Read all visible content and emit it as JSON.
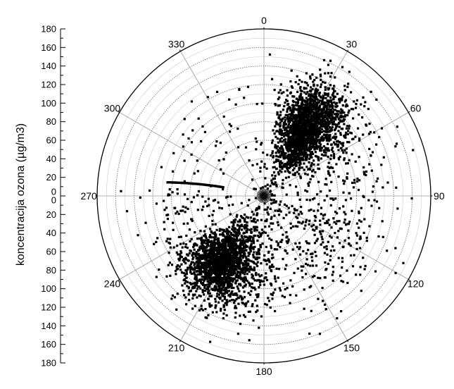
{
  "chart_data": {
    "type": "scatter",
    "coordinate_system": "polar",
    "title": "",
    "radial_axis": {
      "label": "koncentracija ozona (µg/m3)",
      "range": [
        0,
        180
      ],
      "ticks": [
        0,
        20,
        40,
        60,
        80,
        100,
        120,
        140,
        160,
        180
      ],
      "direction": "clockwise",
      "zero_at": "top"
    },
    "angular_axis": {
      "ticks": [
        0,
        30,
        60,
        90,
        120,
        150,
        180,
        210,
        240,
        270,
        300,
        330
      ]
    },
    "grid": true,
    "marker": "square",
    "marker_color": "#000000",
    "series": [
      {
        "clusters": [
          {
            "angle_center": 32,
            "angle_spread": 9,
            "r_mean": 88,
            "r_sd": 24,
            "count": 1900
          },
          {
            "angle_center": 213,
            "angle_spread": 11,
            "r_mean": 88,
            "r_sd": 22,
            "count": 1700
          },
          {
            "angle_center": 125,
            "angle_spread": 30,
            "r_mean": 80,
            "r_sd": 35,
            "count": 380
          },
          {
            "angle_center": 195,
            "angle_spread": 16,
            "r_mean": 75,
            "r_sd": 30,
            "count": 300
          },
          {
            "angle_center": 55,
            "angle_spread": 12,
            "r_mean": 90,
            "r_sd": 30,
            "count": 230
          },
          {
            "angle_center": 260,
            "angle_spread": 12,
            "r_mean": 85,
            "r_sd": 30,
            "count": 90
          },
          {
            "angle_center": 320,
            "angle_spread": 25,
            "r_mean": 80,
            "r_sd": 35,
            "count": 50
          },
          {
            "angle_center": 10,
            "angle_spread": 12,
            "r_mean": 70,
            "r_sd": 30,
            "count": 35
          }
        ],
        "line_segment": {
          "angle_from": 282,
          "angle_to": 278,
          "r_from": 45,
          "r_to": 105
        }
      }
    ]
  }
}
